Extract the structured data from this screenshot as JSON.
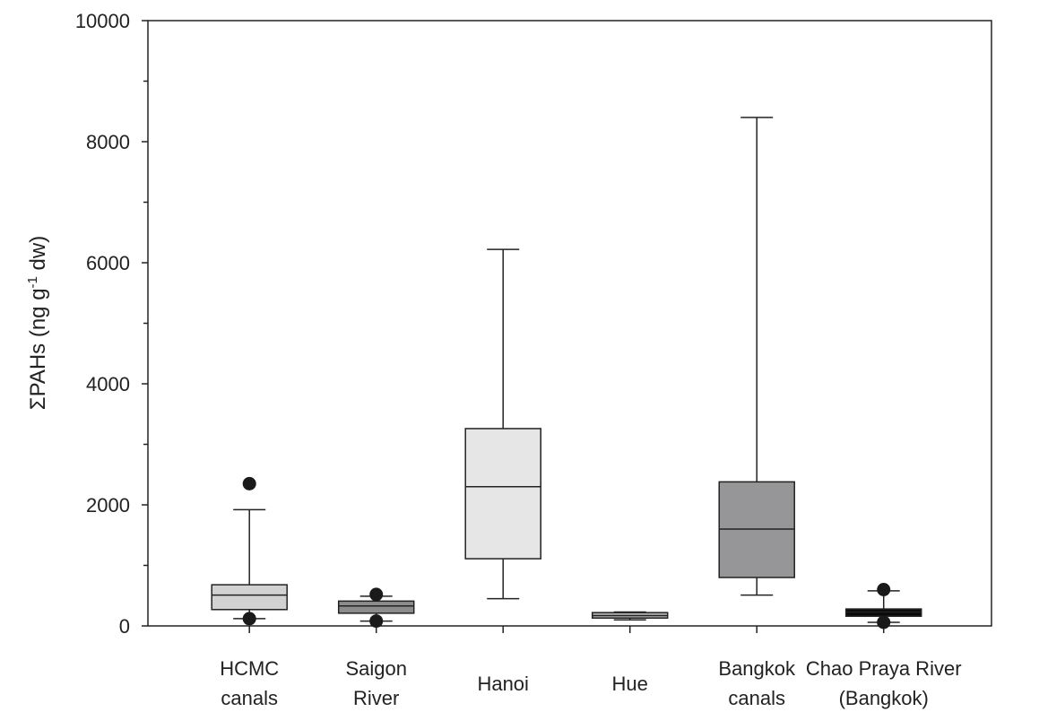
{
  "chart_data": {
    "type": "box",
    "ylabel": "ΣPAHs (ng g-1 dw)",
    "ylabel_parts": {
      "pre": "ΣPAHs (ng g",
      "sup": "-1",
      "post": " dw)"
    },
    "ylim": [
      0,
      10000
    ],
    "yticks": [
      "0",
      "2000",
      "4000",
      "6000",
      "8000",
      "10000"
    ],
    "ytick_values": [
      0,
      2000,
      4000,
      6000,
      8000,
      10000
    ],
    "grid": false,
    "legend": "none",
    "categories": [
      {
        "lines": [
          "HCMC",
          "canals"
        ],
        "min": 120,
        "q1": 270,
        "median": 510,
        "q3": 680,
        "max": 1920,
        "outliers": [
          2350,
          120
        ],
        "color": "#d2d2d2"
      },
      {
        "lines": [
          "Saigon",
          "River"
        ],
        "min": 80,
        "q1": 210,
        "median": 330,
        "q3": 410,
        "max": 490,
        "outliers": [
          520,
          80
        ],
        "color": "#8c8c8c"
      },
      {
        "lines": [
          "Hanoi"
        ],
        "min": 450,
        "q1": 1110,
        "median": 2300,
        "q3": 3260,
        "max": 6220,
        "outliers": [],
        "color": "#e6e6e6"
      },
      {
        "lines": [
          "Hue"
        ],
        "min": 100,
        "q1": 130,
        "median": 170,
        "q3": 220,
        "max": 230,
        "outliers": [],
        "color": "#b4b4b4"
      },
      {
        "lines": [
          "Bangkok",
          "canals"
        ],
        "min": 510,
        "q1": 800,
        "median": 1600,
        "q3": 2380,
        "max": 8400,
        "outliers": [],
        "color": "#969698"
      },
      {
        "lines": [
          "Chao Praya River",
          "(Bangkok)"
        ],
        "min": 60,
        "q1": 160,
        "median": 230,
        "q3": 280,
        "max": 580,
        "outliers": [
          600,
          60
        ],
        "color": "#0a0a0a"
      }
    ]
  }
}
